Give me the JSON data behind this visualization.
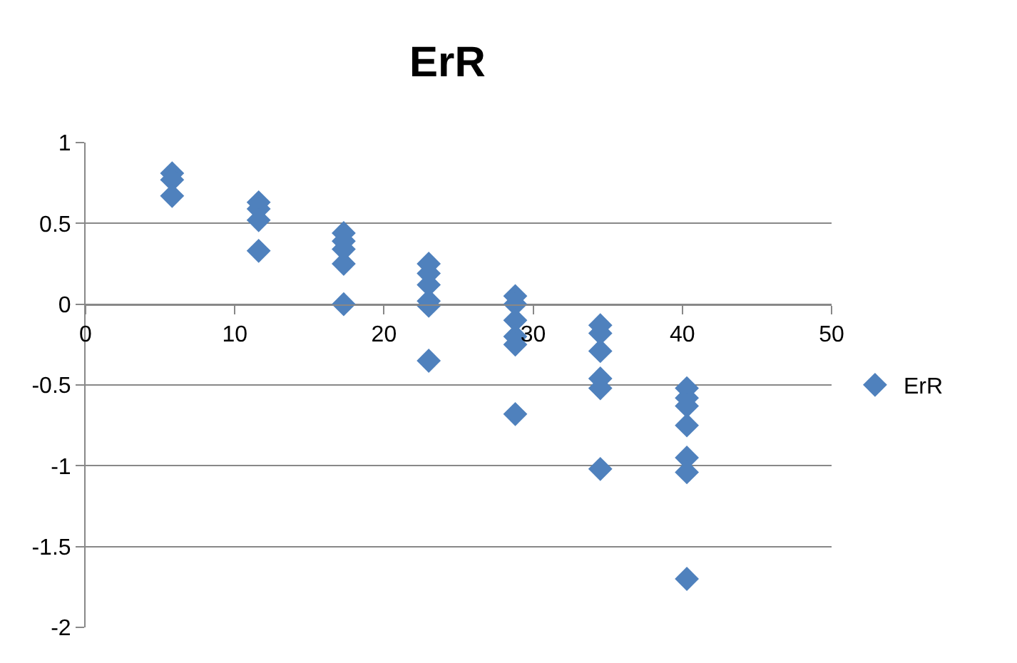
{
  "chart_data": {
    "type": "scatter",
    "title": "ErR",
    "marker": "diamond",
    "grid": "y",
    "legend": "right",
    "xlim": [
      0,
      50
    ],
    "xticks": [
      0,
      10,
      20,
      30,
      40,
      50
    ],
    "ylim": [
      -2,
      1
    ],
    "yticks": [
      -2,
      -1.5,
      -1,
      -0.5,
      0,
      0.5,
      1
    ],
    "series": [
      {
        "name": "ErR",
        "color": "#4f81bd",
        "x": [
          5.8,
          5.8,
          5.8,
          11.6,
          11.6,
          11.6,
          11.6,
          17.3,
          17.3,
          17.3,
          17.3,
          17.3,
          23.0,
          23.0,
          23.0,
          23.0,
          23.0,
          23.0,
          28.8,
          28.8,
          28.8,
          28.8,
          28.8,
          28.8,
          34.5,
          34.5,
          34.5,
          34.5,
          34.5,
          34.5,
          40.3,
          40.3,
          40.3,
          40.3,
          40.3,
          40.3,
          40.3
        ],
        "values": [
          0.81,
          0.77,
          0.67,
          0.63,
          0.59,
          0.52,
          0.33,
          0.44,
          0.39,
          0.34,
          0.25,
          0.0,
          0.25,
          0.19,
          0.12,
          0.02,
          -0.01,
          -0.35,
          0.05,
          0.0,
          -0.1,
          -0.2,
          -0.25,
          -0.68,
          -0.13,
          -0.18,
          -0.29,
          -0.46,
          -0.52,
          -1.02,
          -0.52,
          -0.58,
          -0.63,
          -0.75,
          -0.95,
          -1.04,
          -1.7
        ]
      }
    ]
  }
}
